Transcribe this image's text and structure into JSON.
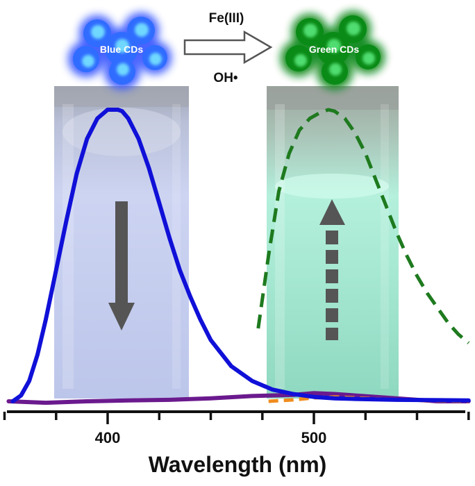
{
  "chart_data": {
    "type": "line",
    "xlabel": "Wavelength (nm)",
    "x_ticks": [
      400,
      500
    ],
    "xlim": [
      350,
      575
    ],
    "ylim": [
      0,
      1.05
    ],
    "grid": false,
    "legend": "none",
    "series": [
      {
        "name": "",
        "color": "#1010d8",
        "style": "solid",
        "x": [
          354,
          358,
          362,
          366,
          370,
          375,
          380,
          385,
          390,
          395,
          400,
          405,
          407,
          410,
          415,
          420,
          425,
          430,
          435,
          440,
          445,
          450,
          460,
          470,
          480,
          490,
          500,
          510,
          520,
          540,
          575
        ],
        "y": [
          0.0,
          0.02,
          0.07,
          0.16,
          0.28,
          0.45,
          0.62,
          0.78,
          0.9,
          0.97,
          1.0,
          1.0,
          0.995,
          0.97,
          0.9,
          0.8,
          0.68,
          0.56,
          0.45,
          0.36,
          0.28,
          0.21,
          0.12,
          0.07,
          0.04,
          0.025,
          0.015,
          0.01,
          0.008,
          0.005,
          0.003
        ]
      },
      {
        "name": "",
        "color": "#6b1a8e",
        "style": "solid",
        "x": [
          352,
          370,
          390,
          410,
          430,
          450,
          470,
          490,
          500,
          510,
          520,
          540,
          560,
          575
        ],
        "y": [
          0.0,
          -0.005,
          0.0,
          0.003,
          0.005,
          0.01,
          0.018,
          0.022,
          0.028,
          0.025,
          0.02,
          0.01,
          0.0,
          0.0
        ]
      },
      {
        "name": "",
        "color": "#f08c1e",
        "style": "dashed",
        "x": [
          478,
          490,
          500,
          510,
          520,
          530,
          545,
          560,
          575
        ],
        "y": [
          0.0,
          0.005,
          0.012,
          0.015,
          0.012,
          0.008,
          0.004,
          0.002,
          0.0
        ]
      },
      {
        "name": "",
        "color": "#1e7a1e",
        "style": "dashed",
        "x": [
          473,
          478,
          483,
          488,
          493,
          498,
          503,
          507,
          510,
          515,
          520,
          525,
          530,
          535,
          540,
          545,
          550,
          555,
          560,
          565,
          570,
          575
        ],
        "y": [
          0.25,
          0.5,
          0.72,
          0.85,
          0.93,
          0.97,
          0.99,
          1.0,
          0.995,
          0.97,
          0.92,
          0.85,
          0.76,
          0.67,
          0.58,
          0.5,
          0.43,
          0.37,
          0.32,
          0.27,
          0.23,
          0.2
        ]
      }
    ]
  },
  "scheme": {
    "left_label": "Blue CDs",
    "right_label": "Green CDs",
    "arrow_top_label": "Fe(III)",
    "arrow_bottom_label": "OH•"
  },
  "colors": {
    "blue_dots": "#2f6cff",
    "blue_dot_highlight": "#6fd8ff",
    "green_dots": "#0a8a16",
    "green_dot_highlight": "#4fdc70",
    "cuvette_blue": "#c4cdf0",
    "cuvette_green": "#9fe5cf",
    "indicator_arrow": "#555555"
  }
}
